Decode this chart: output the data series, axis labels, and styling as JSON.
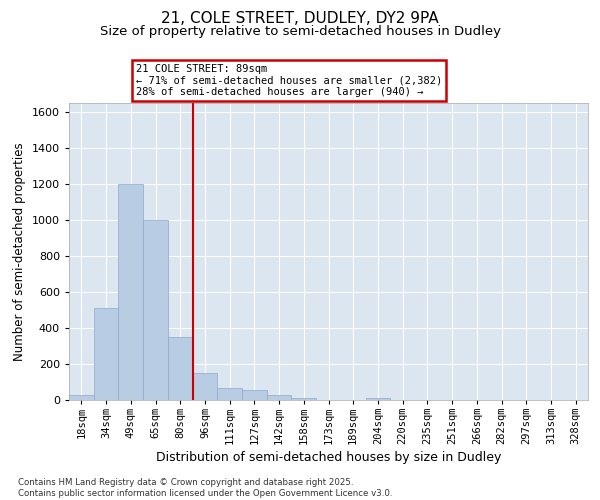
{
  "title1": "21, COLE STREET, DUDLEY, DY2 9PA",
  "title2": "Size of property relative to semi-detached houses in Dudley",
  "xlabel": "Distribution of semi-detached houses by size in Dudley",
  "ylabel": "Number of semi-detached properties",
  "categories": [
    "18sqm",
    "34sqm",
    "49sqm",
    "65sqm",
    "80sqm",
    "96sqm",
    "111sqm",
    "127sqm",
    "142sqm",
    "158sqm",
    "173sqm",
    "189sqm",
    "204sqm",
    "220sqm",
    "235sqm",
    "251sqm",
    "266sqm",
    "282sqm",
    "297sqm",
    "313sqm",
    "328sqm"
  ],
  "values": [
    30,
    510,
    1200,
    1000,
    350,
    150,
    65,
    58,
    30,
    10,
    0,
    0,
    12,
    0,
    0,
    0,
    0,
    0,
    0,
    0,
    0
  ],
  "bar_color": "#b8cce4",
  "bar_edgecolor": "#8fa8c8",
  "property_line_x": 4.5,
  "property_line_color": "#cc0000",
  "annotation_text": "21 COLE STREET: 89sqm\n← 71% of semi-detached houses are smaller (2,382)\n28% of semi-detached houses are larger (940) →",
  "annotation_box_edgecolor": "#cc0000",
  "ylim": [
    0,
    1650
  ],
  "yticks": [
    0,
    200,
    400,
    600,
    800,
    1000,
    1200,
    1400,
    1600
  ],
  "bg_color": "#dce6f1",
  "footer_text": "Contains HM Land Registry data © Crown copyright and database right 2025.\nContains public sector information licensed under the Open Government Licence v3.0."
}
